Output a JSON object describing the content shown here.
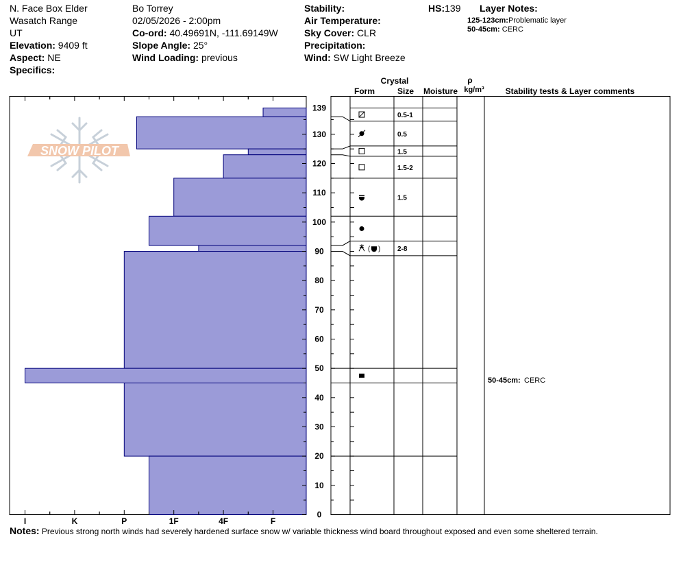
{
  "header": {
    "location": "N. Face Box Elder",
    "range": "Wasatch Range",
    "state": "UT",
    "elevation_label": "Elevation:",
    "elevation": "9409 ft",
    "aspect_label": "Aspect:",
    "aspect": "NE",
    "specifics_label": "Specifics:",
    "observer": "Bo Torrey",
    "datetime": "02/05/2026 - 2:00pm",
    "coord_label": "Co-ord:",
    "coord": "40.49691N, -111.69149W",
    "slope_label": "Slope Angle:",
    "slope": "25°",
    "wind_loading_label": "Wind Loading:",
    "wind_loading": "previous",
    "stability_label": "Stability:",
    "air_temp_label": "Air Temperature:",
    "sky_label": "Sky Cover:",
    "sky": "CLR",
    "precip_label": "Precipitation:",
    "wind_label": "Wind:",
    "wind": " SW Light Breeze",
    "hs_label": "HS:",
    "hs": "139",
    "layer_notes_label": "Layer Notes:",
    "layer_notes": [
      {
        "range": "125-123cm:",
        "text": "Problematic layer"
      },
      {
        "range": "50-45cm:",
        "text": "CERC"
      }
    ]
  },
  "logo_text": "SNOW PILOT",
  "columns": {
    "crystal": "Crystal",
    "form": "Form",
    "size": "Size",
    "moisture": "Moisture",
    "rho": "ρ",
    "density_unit": "kg/m³",
    "stability": "Stability tests & Layer comments"
  },
  "notes_label": "Notes:",
  "notes": "Previous strong north winds had severely hardened surface snow w/ variable thickness wind board throughout exposed and even some sheltered terrain.",
  "chart_data": {
    "type": "bar",
    "orientation": "horizontal",
    "y_axis": "height (cm)",
    "ylim": [
      0,
      139
    ],
    "y_ticks": [
      0,
      10,
      20,
      30,
      40,
      50,
      60,
      70,
      80,
      90,
      100,
      110,
      120,
      130,
      139
    ],
    "x_categories": [
      "I",
      "K",
      "P",
      "1F",
      "4F",
      "F"
    ],
    "hardness_scale_note": "bars extend from right (F) toward left; value = hardness index where F=0",
    "colors": {
      "bar_fill": "#9b9bd8",
      "bar_stroke": "#00007a",
      "line": "#000000"
    },
    "layers": [
      {
        "top": 139,
        "bottom": 136,
        "hardness": 0.2
      },
      {
        "top": 136,
        "bottom": 125,
        "hardness": 2.75
      },
      {
        "top": 125,
        "bottom": 123,
        "hardness": 0.5
      },
      {
        "top": 123,
        "bottom": 115,
        "hardness": 1.0
      },
      {
        "top": 115,
        "bottom": 102,
        "hardness": 2.0
      },
      {
        "top": 102,
        "bottom": 92,
        "hardness": 2.5
      },
      {
        "top": 92,
        "bottom": 90,
        "hardness": 1.5
      },
      {
        "top": 90,
        "bottom": 50,
        "hardness": 3.0
      },
      {
        "top": 50,
        "bottom": 45,
        "hardness": 5.0
      },
      {
        "top": 45,
        "bottom": 20,
        "hardness": 3.0
      },
      {
        "top": 20,
        "bottom": 0,
        "hardness": 2.5
      }
    ],
    "crystal_rows": [
      {
        "top": 139,
        "bottom": 134.5,
        "form": "decomposing",
        "size": "0.5-1",
        "connector_height": 136
      },
      {
        "top": 134.5,
        "bottom": 126,
        "form": "melt-freeze",
        "size": "0.5",
        "connector_height": 125
      },
      {
        "top": 126,
        "bottom": 122.5,
        "form": "faceted",
        "size": "1.5",
        "connector_height": 123
      },
      {
        "top": 122.5,
        "bottom": 115,
        "form": "faceted",
        "size": "1.5-2",
        "connector_height": 115
      },
      {
        "top": 115,
        "bottom": 102,
        "form": "depth-hoar-rounding",
        "size": "1.5",
        "connector_height": 102
      },
      {
        "top": 102,
        "bottom": 93.5,
        "form": "rounded",
        "size": "",
        "connector_height": 92
      },
      {
        "top": 93.5,
        "bottom": 88.5,
        "form": "surface-hoar-mixed",
        "size": "2-8",
        "connector_height": 90
      },
      {
        "top": 50,
        "bottom": 45,
        "form": "melt-crust",
        "size": "",
        "connector_height": 45
      }
    ],
    "stability_comments": [
      {
        "height": 47.5,
        "range": "50-45cm:",
        "text": " CERC"
      }
    ]
  }
}
